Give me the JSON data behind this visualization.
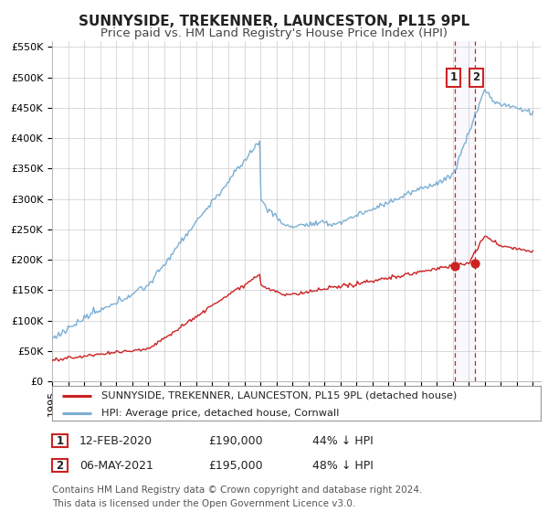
{
  "title": "SUNNYSIDE, TREKENNER, LAUNCESTON, PL15 9PL",
  "subtitle": "Price paid vs. HM Land Registry's House Price Index (HPI)",
  "ylim": [
    0,
    560000
  ],
  "xlim_start": 1995.0,
  "xlim_end": 2025.5,
  "yticks": [
    0,
    50000,
    100000,
    150000,
    200000,
    250000,
    300000,
    350000,
    400000,
    450000,
    500000,
    550000
  ],
  "ytick_labels": [
    "£0",
    "£50K",
    "£100K",
    "£150K",
    "£200K",
    "£250K",
    "£300K",
    "£350K",
    "£400K",
    "£450K",
    "£500K",
    "£550K"
  ],
  "xticks": [
    1995,
    1996,
    1997,
    1998,
    1999,
    2000,
    2001,
    2002,
    2003,
    2004,
    2005,
    2006,
    2007,
    2008,
    2009,
    2010,
    2011,
    2012,
    2013,
    2014,
    2015,
    2016,
    2017,
    2018,
    2019,
    2020,
    2021,
    2022,
    2023,
    2024,
    2025
  ],
  "hpi_color": "#7bafd4",
  "sale_color": "#cc2222",
  "sale_dot_color": "#cc2222",
  "vline_color": "#cc2222",
  "grid_color": "#cccccc",
  "bg_color": "#ffffff",
  "sale1_x": 2020.12,
  "sale1_y": 190000,
  "sale2_x": 2021.37,
  "sale2_y": 195000,
  "legend_label_sale": "SUNNYSIDE, TREKENNER, LAUNCESTON, PL15 9PL (detached house)",
  "legend_label_hpi": "HPI: Average price, detached house, Cornwall",
  "annotation1_label": "1",
  "annotation2_label": "2",
  "table_row1": [
    "1",
    "12-FEB-2020",
    "£190,000",
    "44% ↓ HPI"
  ],
  "table_row2": [
    "2",
    "06-MAY-2021",
    "£195,000",
    "48% ↓ HPI"
  ],
  "footer": "Contains HM Land Registry data © Crown copyright and database right 2024.\nThis data is licensed under the Open Government Licence v3.0.",
  "title_fontsize": 11,
  "subtitle_fontsize": 9.5,
  "tick_fontsize": 8,
  "legend_fontsize": 8.5,
  "table_fontsize": 9,
  "footer_fontsize": 7.5
}
